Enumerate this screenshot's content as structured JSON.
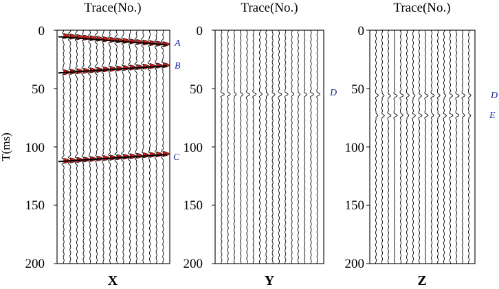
{
  "chart_data": [
    {
      "type": "seismic-trace",
      "title": "Trace(No.)",
      "component": "X",
      "ylabel": "T(ms)",
      "ylim": [
        0,
        200
      ],
      "yticks": [
        0,
        50,
        100,
        150,
        200
      ],
      "trace_count": 16,
      "events": [
        {
          "label": "A",
          "t_start": 5,
          "t_end": 12
        },
        {
          "label": "B",
          "t_start": 36,
          "t_end": 30
        },
        {
          "label": "C",
          "t_start": 112,
          "t_end": 106
        }
      ]
    },
    {
      "type": "seismic-trace",
      "title": "Trace(No.)",
      "component": "Y",
      "ylim": [
        0,
        200
      ],
      "yticks": [
        0,
        50,
        100,
        150,
        200
      ],
      "trace_count": 16,
      "events": [
        {
          "label": "D",
          "t": 55
        }
      ]
    },
    {
      "type": "seismic-trace",
      "title": "Trace(No.)",
      "component": "Z",
      "ylim": [
        0,
        200
      ],
      "yticks": [
        0,
        50,
        100,
        150,
        200
      ],
      "trace_count": 16,
      "events": [
        {
          "label": "D",
          "t": 56
        },
        {
          "label": "E",
          "t": 73
        }
      ]
    }
  ],
  "colors": {
    "wavelet_fill": "#c0201a",
    "annotation": "#1f2a9a",
    "trace": "#000000"
  }
}
